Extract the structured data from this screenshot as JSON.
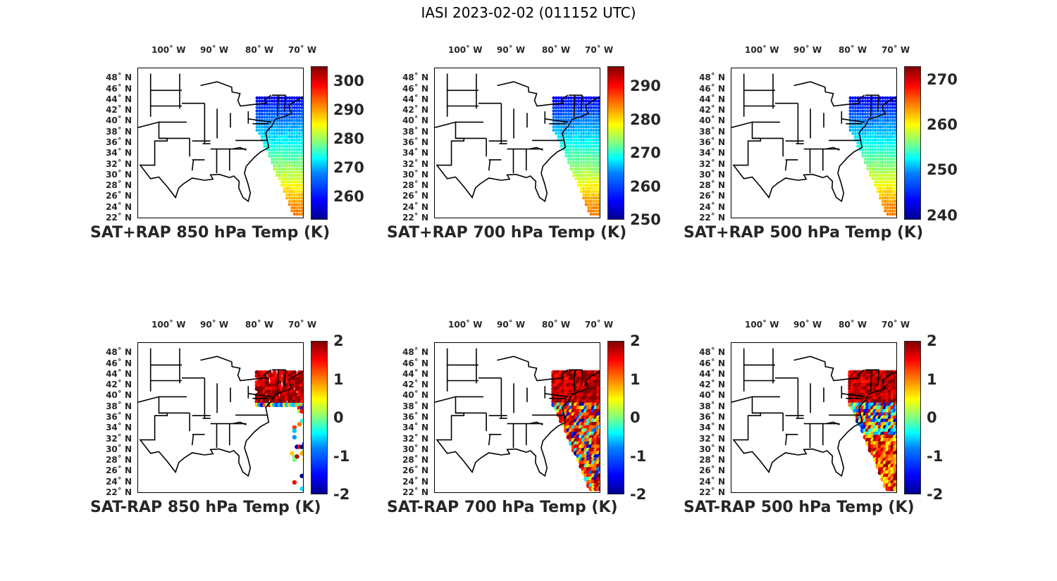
{
  "figure_title": "IASI 2023-02-02 (011152 UTC)",
  "lon_labels": [
    "100˚ W",
    "90˚ W",
    "80˚ W",
    "70˚ W"
  ],
  "lat_labels": [
    "48˚ N",
    "46˚ N",
    "44˚ N",
    "42˚ N",
    "40˚ N",
    "38˚ N",
    "36˚ N",
    "34˚ N",
    "32˚ N",
    "30˚ N",
    "28˚ N",
    "26˚ N",
    "24˚ N",
    "22˚ N"
  ],
  "panels": [
    {
      "title": "SAT+RAP 850 hPa Temp (K)",
      "ticks": [
        "300",
        "290",
        "280",
        "270",
        "260"
      ],
      "tick_values": [
        300,
        290,
        280,
        270,
        260
      ],
      "clim": [
        252,
        305
      ],
      "field": "smooth"
    },
    {
      "title": "SAT+RAP 700 hPa Temp (K)",
      "ticks": [
        "290",
        "280",
        "270",
        "260",
        "250"
      ],
      "tick_values": [
        290,
        280,
        270,
        260,
        250
      ],
      "clim": [
        250,
        296
      ],
      "field": "smooth"
    },
    {
      "title": "SAT+RAP 500 hPa Temp (K)",
      "ticks": [
        "270",
        "260",
        "250",
        "240"
      ],
      "tick_values": [
        270,
        260,
        250,
        240
      ],
      "clim": [
        239,
        273
      ],
      "field": "smooth"
    },
    {
      "title": "SAT-RAP 850 hPa Temp (K)",
      "ticks": [
        "2",
        "1",
        "0",
        "-1",
        "-2"
      ],
      "tick_values": [
        2,
        1,
        0,
        -1,
        -2
      ],
      "clim": [
        -2,
        2
      ],
      "field": "sparse"
    },
    {
      "title": "SAT-RAP 700 hPa Temp (K)",
      "ticks": [
        "2",
        "1",
        "0",
        "-1",
        "-2"
      ],
      "tick_values": [
        2,
        1,
        0,
        -1,
        -2
      ],
      "clim": [
        -2,
        2
      ],
      "field": "dense"
    },
    {
      "title": "SAT-RAP 500 hPa Temp (K)",
      "ticks": [
        "2",
        "1",
        "0",
        "-1",
        "-2"
      ],
      "tick_values": [
        2,
        1,
        0,
        -1,
        -2
      ],
      "clim": [
        -2,
        2
      ],
      "field": "mixed"
    }
  ],
  "colormap": "jet",
  "map_extent": {
    "lon": [
      -107,
      -67
    ],
    "lat": [
      22,
      50
    ]
  }
}
